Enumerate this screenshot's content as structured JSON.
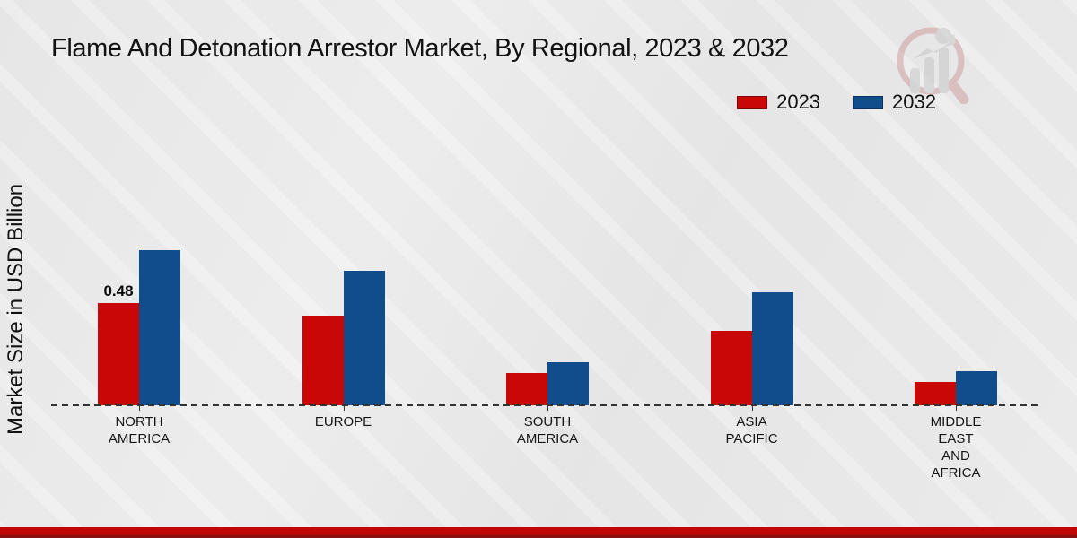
{
  "header": {
    "title": "Flame And Detonation Arrestor Market, By Regional, 2023 & 2032"
  },
  "chart_data": {
    "type": "bar",
    "title": "Flame And Detonation Arrestor Market, By Regional, 2023 & 2032",
    "xlabel": "",
    "ylabel": "Market Size in USD Billion",
    "categories": [
      "NORTH AMERICA",
      "EUROPE",
      "SOUTH AMERICA",
      "ASIA PACIFIC",
      "MIDDLE EAST AND AFRICA"
    ],
    "series": [
      {
        "name": "2023",
        "color": "#c90707",
        "values": [
          0.48,
          0.42,
          0.15,
          0.35,
          0.11
        ]
      },
      {
        "name": "2032",
        "color": "#114d8c",
        "values": [
          0.73,
          0.63,
          0.2,
          0.53,
          0.16
        ]
      }
    ],
    "data_labels": [
      {
        "series": "2023",
        "category": "NORTH AMERICA",
        "text": "0.48"
      }
    ],
    "legend_position": "top-right",
    "grid": false,
    "baseline_style": "dashed",
    "ylim": [
      0,
      0.8
    ]
  },
  "colors": {
    "series_2023": "#c90707",
    "series_2032": "#114d8c",
    "footer_red": "#c10606",
    "footer_dark_red": "#8a1010",
    "background": "#ebebeb",
    "text": "#111111"
  },
  "branding": {
    "logo_icon": "magnifier-bar-chart-watermark"
  }
}
